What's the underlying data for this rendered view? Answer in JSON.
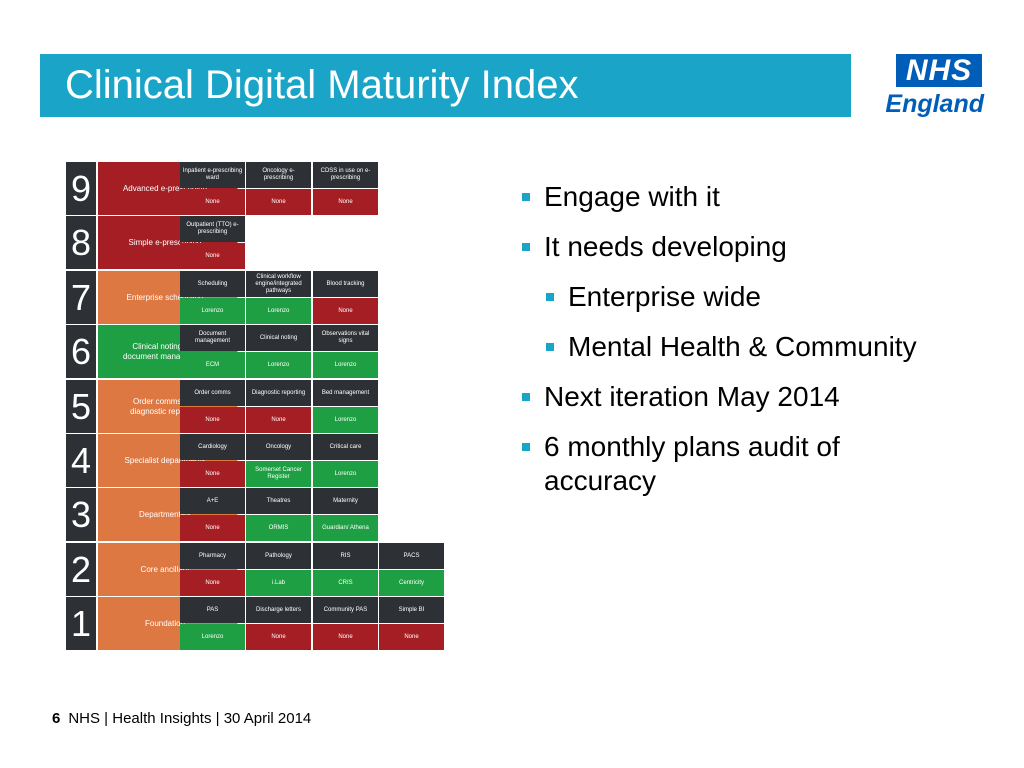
{
  "title": "Clinical Digital Maturity Index",
  "logo": {
    "nhs": "NHS",
    "region": "England"
  },
  "levels": [
    {
      "num": "9",
      "name": "Advanced e-prescribing",
      "color": "red",
      "cells": [
        {
          "label": "Inpatient e-prescribing ward",
          "status": "None"
        },
        {
          "label": "Oncology e-prescribing",
          "status": "None"
        },
        {
          "label": "CDSS in use on e-prescribing",
          "status": "None"
        }
      ]
    },
    {
      "num": "8",
      "name": "Simple e-prescribing",
      "color": "red",
      "cells": [
        {
          "label": "Outpatient (TTO) e-prescribing",
          "status": "None"
        }
      ]
    },
    {
      "num": "7",
      "name": "Enterprise scheduling",
      "color": "orange",
      "cells": [
        {
          "label": "Scheduling",
          "status": "Lorenzo"
        },
        {
          "label": "Clinical workflow engine/integrated pathways",
          "status": "Lorenzo"
        },
        {
          "label": "Blood tracking",
          "status": "None"
        }
      ]
    },
    {
      "num": "6",
      "name": "Clinical noting and document management",
      "color": "green",
      "cells": [
        {
          "label": "Document management",
          "status": "ECM"
        },
        {
          "label": "Clinical noting",
          "status": "Lorenzo"
        },
        {
          "label": "Observations vital signs",
          "status": "Lorenzo"
        }
      ]
    },
    {
      "num": "5",
      "name": "Order comms and diagnostic reporting",
      "color": "orange",
      "cells": [
        {
          "label": "Order comms",
          "status": "None"
        },
        {
          "label": "Diagnostic reporting",
          "status": "None"
        },
        {
          "label": "Bed management",
          "status": "Lorenzo"
        }
      ]
    },
    {
      "num": "4",
      "name": "Specialist departments",
      "color": "orange",
      "cells": [
        {
          "label": "Cardiology",
          "status": "None"
        },
        {
          "label": "Oncology",
          "status": "Somerset Cancer Register"
        },
        {
          "label": "Critical care",
          "status": "Lorenzo"
        }
      ]
    },
    {
      "num": "3",
      "name": "Departmentals",
      "color": "orange",
      "cells": [
        {
          "label": "A+E",
          "status": "None"
        },
        {
          "label": "Theatres",
          "status": "ORMIS"
        },
        {
          "label": "Maternity",
          "status": "Guardian/ Athena"
        }
      ]
    },
    {
      "num": "2",
      "name": "Core ancillary",
      "color": "orange",
      "cells": [
        {
          "label": "Pharmacy",
          "status": "None"
        },
        {
          "label": "Pathology",
          "status": "i.Lab"
        },
        {
          "label": "RIS",
          "status": "CRIS"
        },
        {
          "label": "PACS",
          "status": "Centricity"
        }
      ]
    },
    {
      "num": "1",
      "name": "Foundation",
      "color": "orange",
      "cells": [
        {
          "label": "PAS",
          "status": "Lorenzo"
        },
        {
          "label": "Discharge letters",
          "status": "None"
        },
        {
          "label": "Community PAS",
          "status": "None"
        },
        {
          "label": "Simple BI",
          "status": "None"
        }
      ]
    }
  ],
  "bullets": [
    {
      "text": "Engage with it",
      "level": 1
    },
    {
      "text": "It needs developing",
      "level": 1
    },
    {
      "text": "Enterprise wide",
      "level": 2
    },
    {
      "text": "Mental Health & Community",
      "level": 2
    },
    {
      "text": "Next iteration May 2014",
      "level": 1
    },
    {
      "text": "6 monthly plans audit of accuracy",
      "level": 1
    }
  ],
  "footer": {
    "page": "6",
    "text": "NHS | Health Insights | 30 April 2014"
  }
}
